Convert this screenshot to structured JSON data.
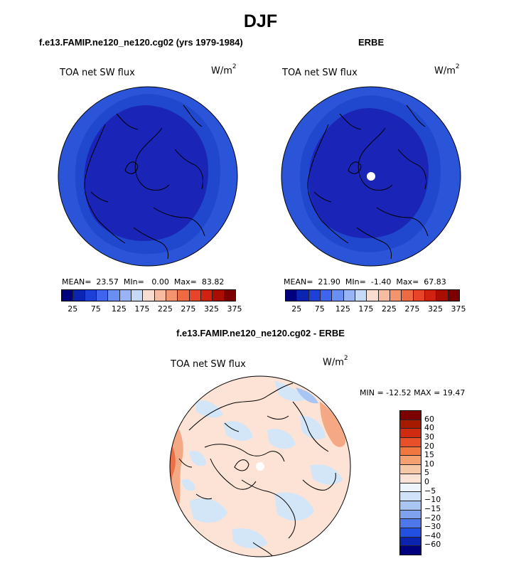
{
  "figure": {
    "title": "DJF"
  },
  "panels": {
    "model": {
      "title": "f.e13.FAMIP.ne120_ne120.cg02 (yrs 1979-1984)",
      "plot_label": "TOA net SW flux",
      "units": "W/m",
      "units_exp": "2",
      "stats": {
        "mean_label": "MEAN=",
        "mean": "23.57",
        "min_label": "MIn=",
        "min": "0.00",
        "max_label": "Max=",
        "max": "83.82"
      }
    },
    "obs": {
      "title": "ERBE",
      "plot_label": "TOA net SW flux",
      "units": "W/m",
      "units_exp": "2",
      "stats": {
        "mean_label": "MEAN=",
        "mean": "21.90",
        "min_label": "MIn=",
        "min": "-1.40",
        "max_label": "Max=",
        "max": "67.83"
      }
    },
    "diff": {
      "title": "f.e13.FAMIP.ne120_ne120.cg02 - ERBE",
      "plot_label": "TOA net SW flux",
      "units": "W/m",
      "units_exp": "2",
      "stats_text": "MIN = -12.52 MAX =  19.47"
    }
  },
  "colorbar_abs": {
    "colors": [
      "#00007f",
      "#0b24b2",
      "#1e40d8",
      "#3f64f0",
      "#6a8ff2",
      "#98b4f4",
      "#c6daf5",
      "#f9dcd0",
      "#f6bca2",
      "#f2956e",
      "#ee6a43",
      "#e8442a",
      "#d0220e",
      "#a90e00",
      "#7d0000"
    ],
    "tick_labels": [
      "25",
      "75",
      "125",
      "175",
      "225",
      "275",
      "325",
      "375"
    ]
  },
  "colorbar_diff": {
    "colors": [
      "#7d0000",
      "#a61a00",
      "#d02b10",
      "#e8502a",
      "#f07840",
      "#f4a070",
      "#f7c8a8",
      "#fde3d5",
      "#eef4fb",
      "#cfe2f7",
      "#a9c5f2",
      "#7ea2ee",
      "#4e78ea",
      "#2250e0",
      "#0a24b0",
      "#00007f"
    ],
    "tick_labels": [
      "60",
      "40",
      "30",
      "20",
      "15",
      "10",
      "5",
      "0",
      "−5",
      "−10",
      "−15",
      "−20",
      "−30",
      "−40",
      "−60"
    ]
  },
  "colors": {
    "deep_blue": "#1a25b8",
    "mid_blue": "#2048d6",
    "diff_background": "#fde3d5",
    "diff_light_blue": "#d3e6f8",
    "diff_orange": "#f4a883",
    "diff_dark_orange": "#ec6f47"
  }
}
